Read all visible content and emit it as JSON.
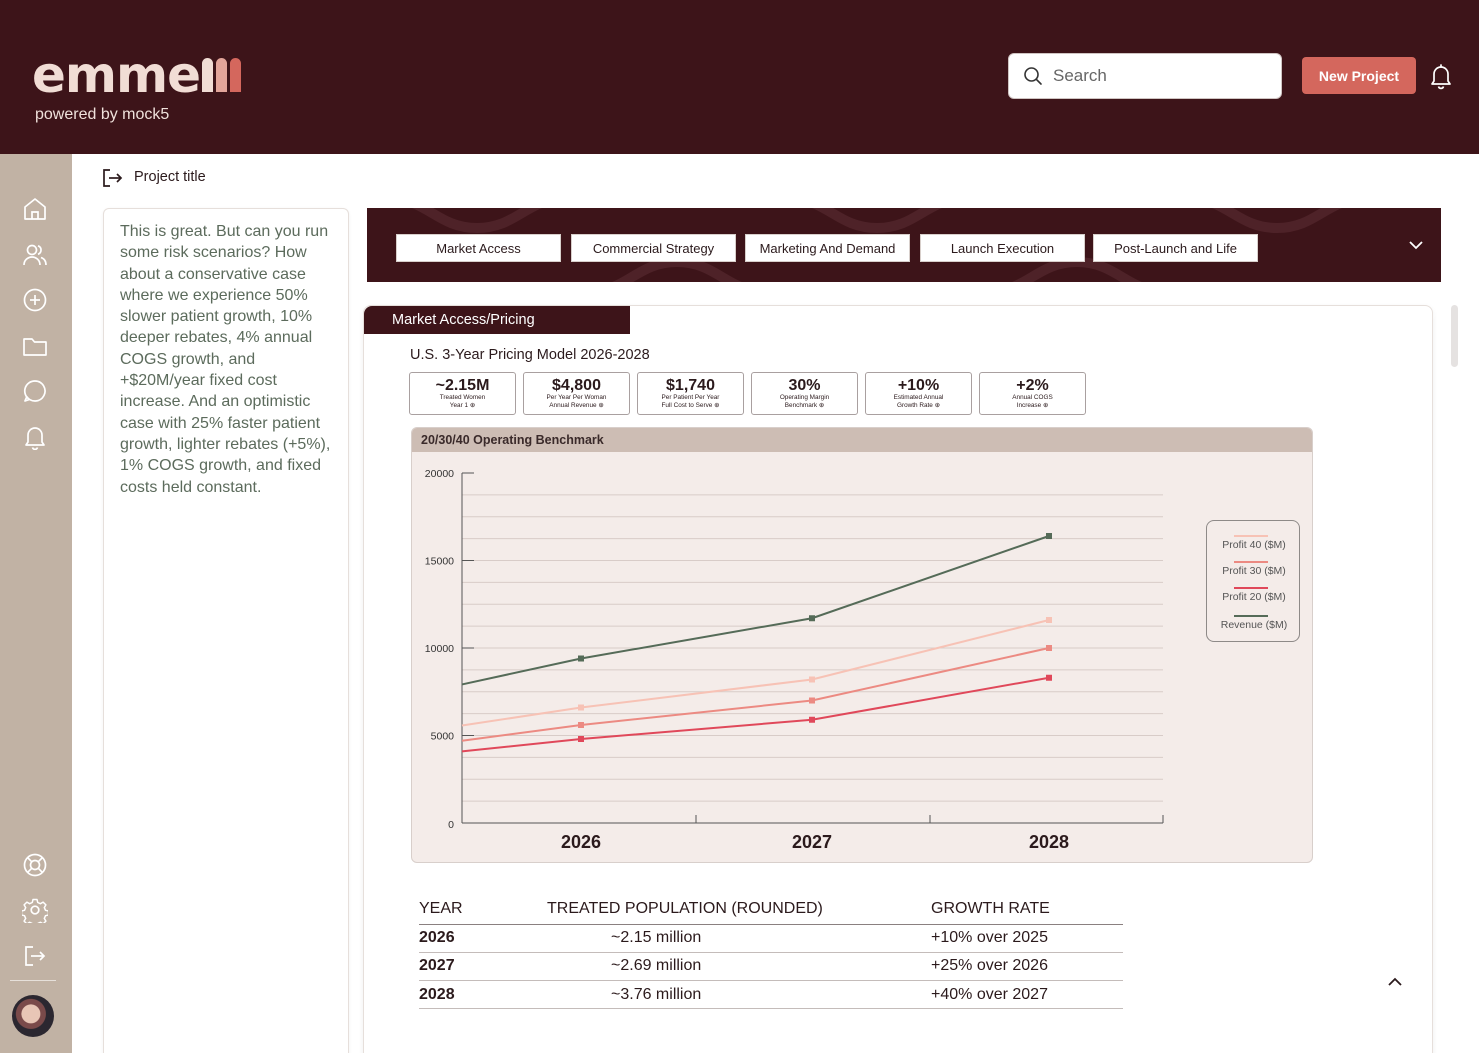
{
  "brand": {
    "logo_text": "emme",
    "tagline": "powered by mock5",
    "tail_colors": [
      "#f1ddd5",
      "#e3a59a",
      "#d4675d"
    ]
  },
  "header": {
    "search_placeholder": "Search",
    "new_project_label": "New Project"
  },
  "sidebar": {
    "icons": [
      "home-icon",
      "users-icon",
      "add-circle-icon",
      "folder-icon",
      "chat-icon",
      "bell-icon",
      "support-icon",
      "gear-icon",
      "logout-icon"
    ]
  },
  "project": {
    "title": "Project title"
  },
  "chat": {
    "message": "This is great. But can you run some risk scenarios? How about a conservative case where we experience 50% slower patient growth, 10% deeper rebates, 4% annual COGS growth, and +$20M/year fixed cost increase. And an optimistic case with 25% faster patient growth, lighter rebates (+5%), 1% COGS growth, and fixed costs held constant."
  },
  "tabs": [
    "Market Access",
    "Commercial Strategy",
    "Marketing And Demand",
    "Launch Execution",
    "Post-Launch and Life"
  ],
  "section": {
    "label": "Market Access/Pricing",
    "model_title": "U.S. 3-Year Pricing Model 2026-2028"
  },
  "kpis": [
    {
      "value": "~2.15M",
      "line1": "Treated Women",
      "line2": "Year 1"
    },
    {
      "value": "$4,800",
      "line1": "Per Year Per Woman",
      "line2": "Annual Revenue"
    },
    {
      "value": "$1,740",
      "line1": "Per Patient Per Year",
      "line2": "Full Cost to Serve"
    },
    {
      "value": "30%",
      "line1": "Operating Margin",
      "line2": "Benchmark"
    },
    {
      "value": "+10%",
      "line1": "Estimated Annual",
      "line2": "Growth Rate"
    },
    {
      "value": "+2%",
      "line1": "Annual COGS",
      "line2": "Increase"
    }
  ],
  "chart_data": {
    "type": "line",
    "title": "20/30/40 Operating Benchmark",
    "categories": [
      "2026",
      "2027",
      "2028"
    ],
    "ylim": [
      0,
      20000
    ],
    "yticks": [
      0,
      5000,
      10000,
      15000,
      20000
    ],
    "grid": true,
    "legend_position": "right",
    "series": [
      {
        "name": "Profit 40 ($M)",
        "color": "#f7c2b5",
        "values": [
          6600,
          8200,
          11600
        ]
      },
      {
        "name": "Profit 30 ($M)",
        "color": "#ec8a82",
        "values": [
          5600,
          7000,
          10000
        ]
      },
      {
        "name": "Profit 20 ($M)",
        "color": "#e0485a",
        "values": [
          4800,
          5900,
          8300
        ]
      },
      {
        "name": "Revenue ($M)",
        "color": "#556b58",
        "values": [
          9400,
          11700,
          16400
        ]
      }
    ]
  },
  "table": {
    "headers": [
      "YEAR",
      "TREATED POPULATION (ROUNDED)",
      "GROWTH RATE"
    ],
    "rows": [
      [
        "2026",
        "~2.15 million",
        "+10% over 2025"
      ],
      [
        "2027",
        "~2.69 million",
        "+25% over 2026"
      ],
      [
        "2028",
        "~3.76 million",
        "+40% over 2027"
      ]
    ]
  }
}
